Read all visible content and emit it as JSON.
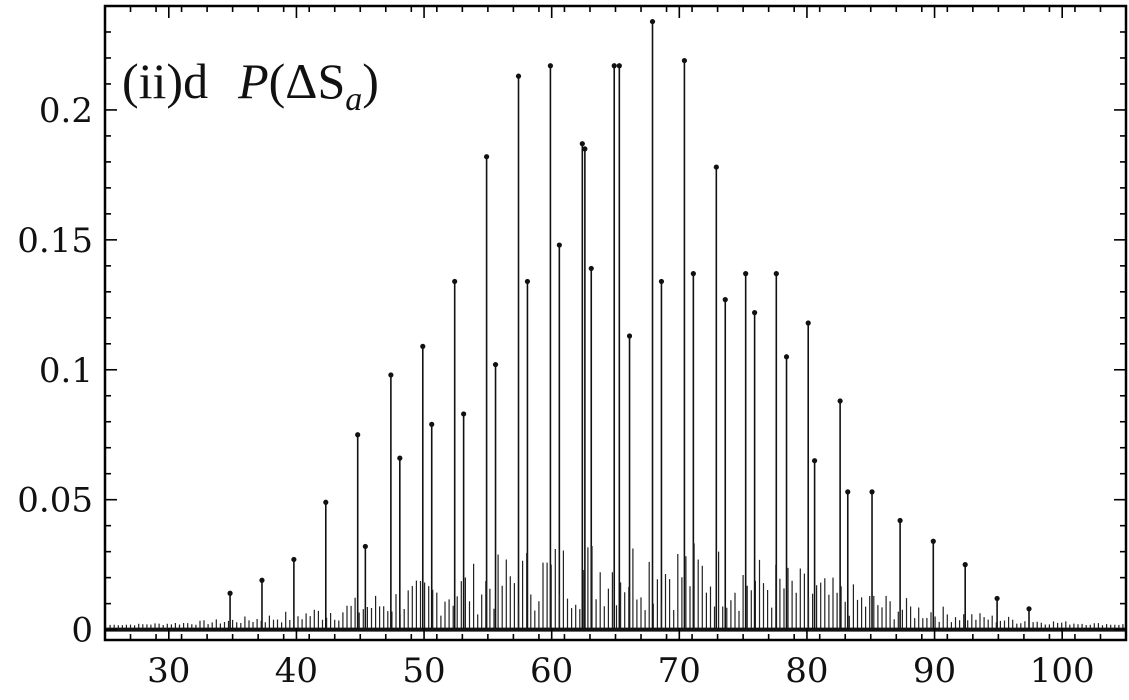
{
  "chart_data": {
    "type": "line",
    "panel_label": "(ii)d",
    "title_function": "P",
    "title_argument": "ΔS",
    "title_subscript": "a",
    "title_paren_open": "(",
    "title_paren_close": ")",
    "xlim": [
      25,
      105
    ],
    "ylim": [
      -0.004,
      0.24
    ],
    "x_ticks": [
      30,
      40,
      50,
      60,
      70,
      80,
      90,
      100
    ],
    "x_tick_labels": [
      "30",
      "40",
      "50",
      "60",
      "70",
      "80",
      "90",
      "100"
    ],
    "y_ticks": [
      0,
      0.05,
      0.1,
      0.15,
      0.2
    ],
    "y_tick_labels": [
      "0",
      "0.05",
      "0.1",
      "0.15",
      "0.2"
    ],
    "series": [
      {
        "x": [
          34.8,
          37.3,
          39.8,
          42.3,
          44.8,
          45.4,
          47.4,
          48.1,
          49.9,
          50.6,
          52.4,
          53.1,
          54.9,
          55.6,
          57.4,
          58.1,
          59.9,
          60.6,
          62.4,
          62.6,
          63.1,
          64.9,
          65.3,
          66.1,
          67.9,
          68.6,
          70.4,
          71.1,
          72.9,
          73.6,
          75.2,
          75.9,
          77.6,
          78.4,
          80.1,
          80.6,
          82.6,
          83.2,
          85.1,
          87.3,
          89.9,
          92.4,
          94.9,
          97.4
        ],
        "y": [
          0.014,
          0.019,
          0.027,
          0.049,
          0.075,
          0.032,
          0.098,
          0.066,
          0.109,
          0.079,
          0.134,
          0.083,
          0.182,
          0.102,
          0.213,
          0.134,
          0.217,
          0.148,
          0.187,
          0.185,
          0.139,
          0.217,
          0.217,
          0.113,
          0.234,
          0.134,
          0.219,
          0.137,
          0.178,
          0.127,
          0.137,
          0.122,
          0.137,
          0.105,
          0.118,
          0.065,
          0.088,
          0.053,
          0.053,
          0.042,
          0.034,
          0.025,
          0.012,
          0.008
        ]
      }
    ],
    "grid": false
  }
}
